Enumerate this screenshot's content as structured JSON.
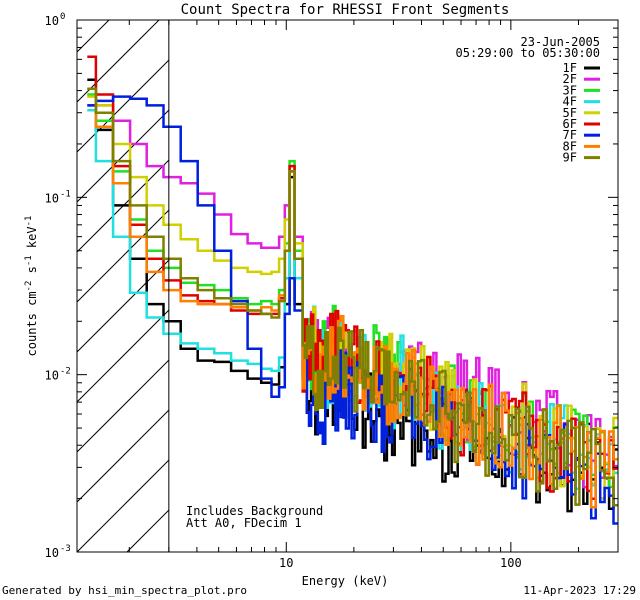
{
  "chart_data": {
    "type": "line",
    "title": "Count Spectra for RHESSI Front Segments",
    "xlabel": "Energy (keV)",
    "ylabel": "counts cm",
    "ylabel_unit_exp": "-2",
    "ylabel_s": "s",
    "ylabel_s_exp": "-1",
    "ylabel_kev": "keV",
    "ylabel_kev_exp": "-1",
    "xscale": "log",
    "yscale": "log",
    "xlim": [
      1.17,
      300
    ],
    "ylim": [
      0.001,
      1.0
    ],
    "x_ticks": [
      {
        "value": 10,
        "label": "10"
      },
      {
        "value": 100,
        "label": "100"
      }
    ],
    "y_ticks": [
      {
        "value": 1.0,
        "mantissa": "10",
        "exp": "0"
      },
      {
        "value": 0.1,
        "mantissa": "10",
        "exp": "-1"
      },
      {
        "value": 0.01,
        "mantissa": "10",
        "exp": "-2"
      },
      {
        "value": 0.001,
        "mantissa": "10",
        "exp": "-3"
      }
    ],
    "legend": {
      "placement": "top-right",
      "date": "23-Jun-2005",
      "time_range": "05:29:00 to 05:30:00"
    },
    "annotation_lines": [
      "Includes Background",
      "Att A0, FDecim 1"
    ],
    "shaded_region_kev": [
      1.17,
      3.0
    ],
    "series": [
      {
        "name": "1F",
        "color": "#000000",
        "values": [
          0.46,
          0.24,
          0.09,
          0.045,
          0.025,
          0.02,
          0.014,
          0.012,
          0.0118,
          0.0105,
          0.0095,
          0.009,
          0.0088,
          0.011,
          0.025,
          0.13,
          0.025,
          0.0095,
          0.0075,
          0.0085,
          0.0082,
          0.006,
          0.0048,
          0.0065,
          0.005,
          0.0038,
          0.0045,
          0.004,
          0.0036,
          0.0038,
          0.0033,
          0.0031,
          0.003,
          0.0027
        ]
      },
      {
        "name": "2F",
        "color": "#e020e0",
        "values": [
          0.33,
          0.33,
          0.27,
          0.2,
          0.15,
          0.13,
          0.12,
          0.105,
          0.08,
          0.062,
          0.055,
          0.052,
          0.052,
          0.06,
          0.09,
          0.14,
          0.06,
          0.017,
          0.012,
          0.0135,
          0.012,
          0.0115,
          0.0105,
          0.0105,
          0.009,
          0.0085,
          0.0078,
          0.007,
          0.0065,
          0.0058,
          0.0052,
          0.0046,
          0.0041,
          0.0037
        ]
      },
      {
        "name": "3F",
        "color": "#20e020",
        "values": [
          0.38,
          0.27,
          0.14,
          0.075,
          0.05,
          0.04,
          0.033,
          0.032,
          0.03,
          0.027,
          0.025,
          0.026,
          0.025,
          0.03,
          0.055,
          0.16,
          0.05,
          0.014,
          0.012,
          0.0145,
          0.0125,
          0.011,
          0.0095,
          0.0105,
          0.0085,
          0.0073,
          0.0066,
          0.006,
          0.0055,
          0.0049,
          0.0044,
          0.004,
          0.0036,
          0.0033
        ]
      },
      {
        "name": "4F",
        "color": "#20e0e0",
        "values": [
          0.31,
          0.16,
          0.06,
          0.029,
          0.021,
          0.017,
          0.015,
          0.014,
          0.0132,
          0.012,
          0.0115,
          0.0108,
          0.0105,
          0.0125,
          0.035,
          0.15,
          0.035,
          0.014,
          0.011,
          0.0118,
          0.011,
          0.0095,
          0.0085,
          0.0095,
          0.008,
          0.0068,
          0.0062,
          0.0056,
          0.0051,
          0.0046,
          0.0042,
          0.0039,
          0.0035,
          0.0031
        ]
      },
      {
        "name": "5F",
        "color": "#d0d000",
        "values": [
          0.37,
          0.33,
          0.2,
          0.13,
          0.09,
          0.07,
          0.058,
          0.05,
          0.044,
          0.04,
          0.038,
          0.037,
          0.038,
          0.045,
          0.075,
          0.15,
          0.055,
          0.017,
          0.0135,
          0.0145,
          0.0125,
          0.0118,
          0.0105,
          0.0105,
          0.009,
          0.008,
          0.0072,
          0.0065,
          0.0058,
          0.0052,
          0.0046,
          0.0041,
          0.0038,
          0.0034
        ]
      },
      {
        "name": "6F",
        "color": "#e00000",
        "values": [
          0.62,
          0.38,
          0.15,
          0.07,
          0.045,
          0.034,
          0.028,
          0.026,
          0.025,
          0.023,
          0.022,
          0.022,
          0.022,
          0.027,
          0.05,
          0.15,
          0.045,
          0.013,
          0.011,
          0.013,
          0.0115,
          0.0098,
          0.0085,
          0.0095,
          0.0078,
          0.0068,
          0.006,
          0.0055,
          0.005,
          0.0045,
          0.0041,
          0.0037,
          0.0034,
          0.003
        ]
      },
      {
        "name": "7F",
        "color": "#0020e0",
        "values": [
          0.33,
          0.35,
          0.37,
          0.36,
          0.33,
          0.25,
          0.16,
          0.09,
          0.05,
          0.026,
          0.014,
          0.0095,
          0.0075,
          0.0085,
          0.022,
          0.035,
          0.023,
          0.009,
          0.0072,
          0.0078,
          0.0075,
          0.0068,
          0.0062,
          0.0068,
          0.0056,
          0.0049,
          0.0045,
          0.0042,
          0.0038,
          0.0035,
          0.0033,
          0.003,
          0.0028,
          0.0025
        ]
      },
      {
        "name": "8F",
        "color": "#ff7f00",
        "values": [
          0.41,
          0.25,
          0.12,
          0.06,
          0.038,
          0.03,
          0.026,
          0.025,
          0.025,
          0.024,
          0.023,
          0.024,
          0.023,
          0.028,
          0.05,
          0.14,
          0.045,
          0.013,
          0.0105,
          0.012,
          0.011,
          0.0095,
          0.0085,
          0.0095,
          0.0078,
          0.0068,
          0.0061,
          0.0055,
          0.005,
          0.0046,
          0.0042,
          0.0038,
          0.0034,
          0.0031
        ]
      },
      {
        "name": "9F",
        "color": "#808000",
        "values": [
          0.41,
          0.3,
          0.16,
          0.09,
          0.06,
          0.045,
          0.035,
          0.03,
          0.027,
          0.025,
          0.023,
          0.022,
          0.021,
          0.026,
          0.05,
          0.14,
          0.045,
          0.0125,
          0.01,
          0.0115,
          0.0105,
          0.009,
          0.008,
          0.009,
          0.0073,
          0.0064,
          0.0057,
          0.0052,
          0.0047,
          0.0043,
          0.0039,
          0.0036,
          0.0032,
          0.0029
        ]
      }
    ],
    "x": [
      1.3,
      1.55,
      1.85,
      2.2,
      2.6,
      3.1,
      3.7,
      4.4,
      5.2,
      6.2,
      7.3,
      8.2,
      9.0,
      9.6,
      10.1,
      10.6,
      11.2,
      12.5,
      14.5,
      17.0,
      20.0,
      24.0,
      28.0,
      33.0,
      40.0,
      48.0,
      58.0,
      70.0,
      85.0,
      105.0,
      130.0,
      160.0,
      200.0,
      260.0
    ]
  },
  "footer": {
    "generated_by": "Generated by hsi_min_spectra_plot.pro",
    "timestamp": "11-Apr-2023 17:29"
  }
}
